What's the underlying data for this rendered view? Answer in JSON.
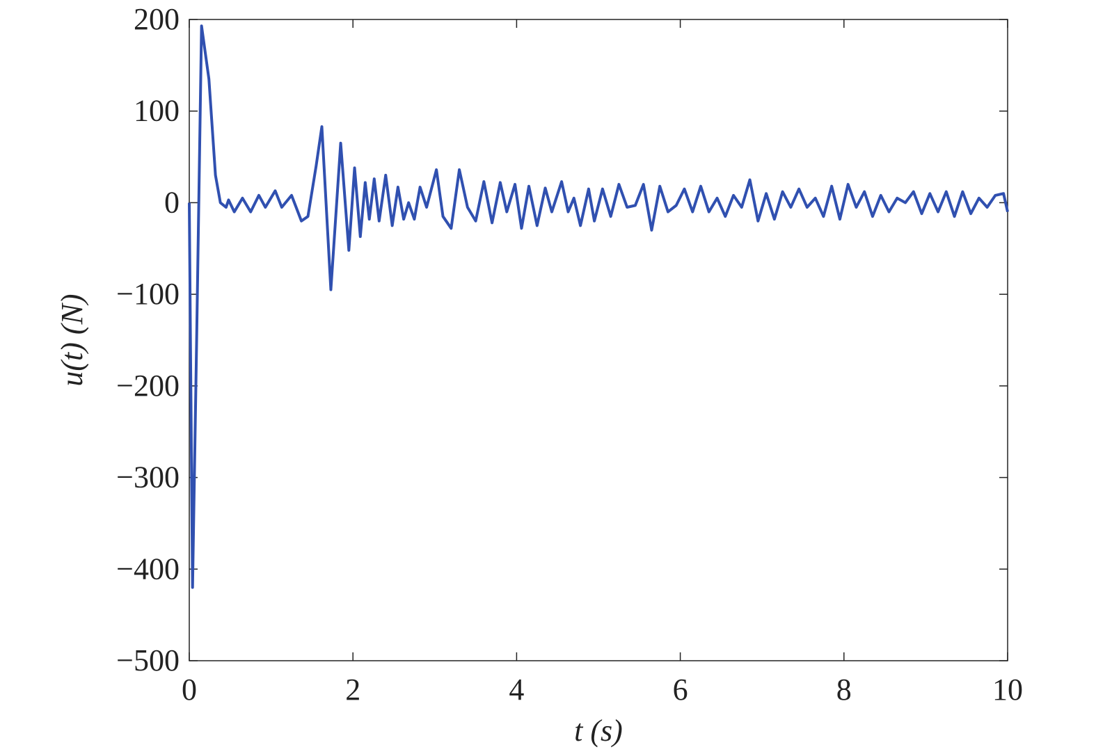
{
  "chart_data": {
    "type": "line",
    "xlabel": "t (s)",
    "ylabel": "u(t) (N)",
    "x": [
      0,
      0.04,
      0.09,
      0.15,
      0.24,
      0.32,
      0.38,
      0.45,
      0.48,
      0.55,
      0.65,
      0.75,
      0.85,
      0.93,
      1.05,
      1.13,
      1.25,
      1.37,
      1.45,
      1.55,
      1.62,
      1.73,
      1.85,
      1.95,
      2.02,
      2.09,
      2.15,
      2.2,
      2.26,
      2.32,
      2.4,
      2.48,
      2.55,
      2.62,
      2.68,
      2.75,
      2.82,
      2.9,
      3.02,
      3.1,
      3.2,
      3.3,
      3.4,
      3.5,
      3.6,
      3.7,
      3.8,
      3.88,
      3.98,
      4.06,
      4.15,
      4.25,
      4.35,
      4.43,
      4.55,
      4.63,
      4.7,
      4.78,
      4.88,
      4.95,
      5.05,
      5.15,
      5.25,
      5.35,
      5.45,
      5.55,
      5.65,
      5.75,
      5.85,
      5.95,
      6.05,
      6.15,
      6.25,
      6.35,
      6.45,
      6.55,
      6.65,
      6.75,
      6.85,
      6.95,
      7.05,
      7.15,
      7.25,
      7.35,
      7.45,
      7.55,
      7.65,
      7.75,
      7.85,
      7.95,
      8.05,
      8.15,
      8.25,
      8.35,
      8.45,
      8.55,
      8.65,
      8.75,
      8.85,
      8.95,
      9.05,
      9.15,
      9.25,
      9.35,
      9.45,
      9.55,
      9.65,
      9.75,
      9.85,
      9.95,
      10
    ],
    "series": [
      {
        "name": "u(t)",
        "color": "#3050b0",
        "values": [
          0,
          -420,
          -150,
          193,
          135,
          30,
          0,
          -5,
          3,
          -10,
          5,
          -10,
          8,
          -5,
          13,
          -5,
          8,
          -20,
          -15,
          40,
          83,
          -95,
          65,
          -52,
          38,
          -37,
          22,
          -18,
          26,
          -20,
          30,
          -25,
          17,
          -18,
          0,
          -18,
          17,
          -5,
          36,
          -15,
          -28,
          36,
          -5,
          -20,
          23,
          -22,
          22,
          -10,
          20,
          -28,
          18,
          -25,
          16,
          -10,
          23,
          -10,
          5,
          -25,
          15,
          -20,
          15,
          -15,
          20,
          -5,
          -3,
          20,
          -30,
          18,
          -10,
          -3,
          15,
          -10,
          18,
          -10,
          5,
          -15,
          8,
          -5,
          25,
          -20,
          10,
          -18,
          12,
          -5,
          15,
          -5,
          5,
          -15,
          18,
          -18,
          20,
          -5,
          12,
          -15,
          8,
          -10,
          5,
          0,
          12,
          -12,
          10,
          -10,
          12,
          -15,
          12,
          -12,
          5,
          -5,
          8,
          10,
          -10
        ]
      }
    ],
    "xlim": [
      0,
      10
    ],
    "xticks": [
      0,
      2,
      4,
      6,
      8,
      10
    ],
    "ylim": [
      -500,
      200
    ],
    "yticks": [
      {
        "value": -500,
        "label": "−500"
      },
      {
        "value": -400,
        "label": "−400"
      },
      {
        "value": -300,
        "label": "−300"
      },
      {
        "value": -200,
        "label": "−200"
      },
      {
        "value": -100,
        "label": "−100"
      },
      0,
      100,
      200
    ],
    "grid": false
  }
}
